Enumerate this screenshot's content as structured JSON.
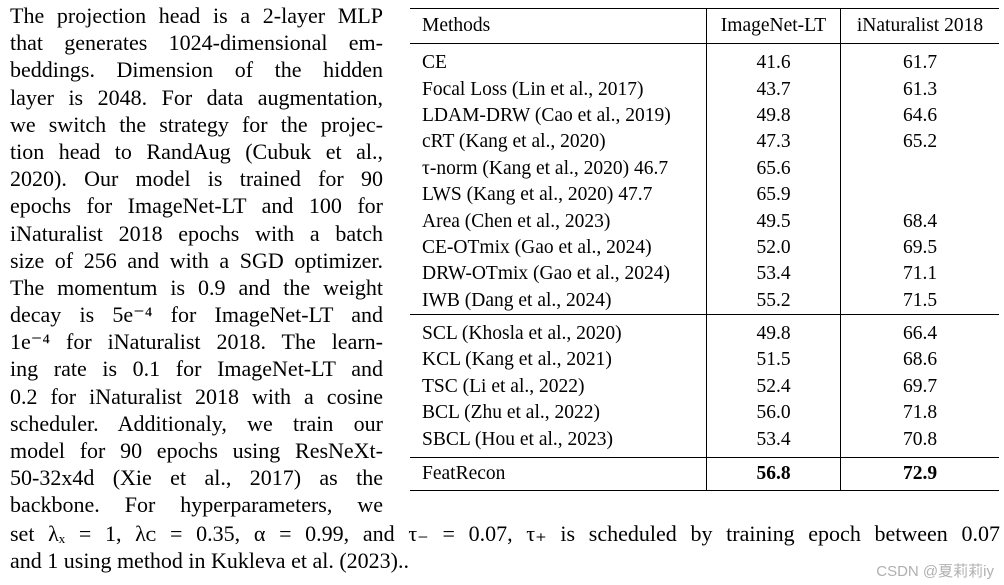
{
  "left_column": [
    "The projection head is a 2-layer MLP",
    "that generates 1024-dimensional em-",
    "beddings.  Dimension of the hidden",
    "layer is 2048. For data augmentation,",
    "we switch the strategy for the projec-",
    "tion head to RandAug (Cubuk et al.,",
    "2020).  Our model is trained for 90",
    "epochs for ImageNet-LT and 100 for",
    "iNaturalist 2018 epochs with a batch",
    "size of 256 and with a SGD optimizer.",
    "The momentum is 0.9 and the weight",
    "decay is 5e⁻⁴ for ImageNet-LT and",
    "1e⁻⁴ for iNaturalist 2018. The learn-",
    "ing rate is 0.1 for ImageNet-LT and",
    "0.2 for iNaturalist 2018 with a cosine",
    "scheduler. Additionaly, we train our",
    "model for 90 epochs using ResNeXt-",
    "50-32x4d (Xie et al., 2017) as the",
    "backbone. For hyperparameters, we"
  ],
  "bottom_lines": [
    "set λₓ = 1, λᴄ = 0.35, α = 0.99, and τ₋ = 0.07, τ₊ is scheduled by training epoch between 0.07",
    "and 1 using method in Kukleva et al. (2023).."
  ],
  "table": {
    "headers": [
      "Methods",
      "ImageNet-LT",
      "iNaturalist 2018"
    ],
    "group1": [
      [
        "CE",
        "41.6",
        "61.7"
      ],
      [
        "Focal Loss (Lin et al., 2017)",
        "43.7",
        "61.3"
      ],
      [
        "LDAM-DRW (Cao et al., 2019)",
        "49.8",
        "64.6"
      ],
      [
        "cRT (Kang et al., 2020)",
        "47.3",
        "65.2"
      ],
      [
        "τ-norm (Kang et al., 2020) 46.7",
        "65.6",
        ""
      ],
      [
        "LWS (Kang et al., 2020) 47.7",
        "65.9",
        ""
      ],
      [
        "Area (Chen et al., 2023)",
        "49.5",
        "68.4"
      ],
      [
        "CE-OTmix (Gao et al., 2024)",
        "52.0",
        "69.5"
      ],
      [
        "DRW-OTmix (Gao et al., 2024)",
        "53.4",
        "71.1"
      ],
      [
        "IWB (Dang et al., 2024)",
        "55.2",
        "71.5"
      ]
    ],
    "group2": [
      [
        "SCL (Khosla et al., 2020)",
        "49.8",
        "66.4"
      ],
      [
        "KCL (Kang et al., 2021)",
        "51.5",
        "68.6"
      ],
      [
        "TSC (Li et al., 2022)",
        "52.4",
        "69.7"
      ],
      [
        "BCL (Zhu et al., 2022)",
        "56.0",
        "71.8"
      ],
      [
        "SBCL (Hou et al., 2023)",
        "53.4",
        "70.8"
      ]
    ],
    "group3": [
      [
        "FeatRecon",
        "56.8",
        "72.9"
      ]
    ]
  },
  "watermark": "CSDN @夏莉莉iy"
}
